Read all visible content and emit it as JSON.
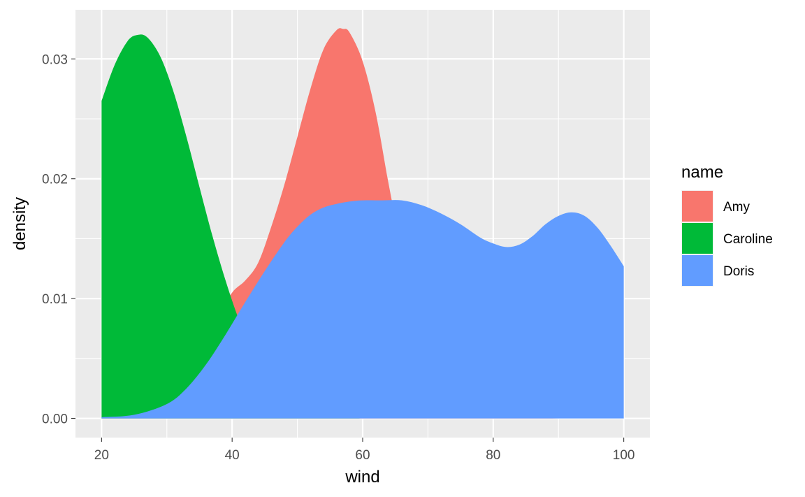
{
  "chart_data": {
    "type": "area",
    "xlabel": "wind",
    "ylabel": "density",
    "xlim": [
      16,
      104
    ],
    "ylim": [
      -0.0016,
      0.0341
    ],
    "x_ticks": [
      20,
      40,
      60,
      80,
      100
    ],
    "x_tick_labels": [
      "20",
      "40",
      "60",
      "80",
      "100"
    ],
    "y_ticks": [
      0,
      0.01,
      0.02,
      0.03
    ],
    "y_tick_labels": [
      "0.00",
      "0.01",
      "0.02",
      "0.03"
    ],
    "grid": true,
    "legend": {
      "title": "name",
      "placement": "right"
    },
    "series": [
      {
        "name": "Amy",
        "color": "#F8766D",
        "x": [
          20,
          30,
          35,
          38,
          40,
          42,
          44,
          46,
          48,
          50,
          52,
          54,
          56,
          57,
          58,
          60,
          62,
          64,
          66,
          68,
          70,
          72,
          75,
          80,
          90,
          100
        ],
        "y": [
          0,
          0.0015,
          0.005,
          0.0085,
          0.0105,
          0.0115,
          0.013,
          0.016,
          0.0195,
          0.0235,
          0.0275,
          0.0308,
          0.0324,
          0.0325,
          0.0322,
          0.0298,
          0.0255,
          0.0195,
          0.014,
          0.009,
          0.005,
          0.0025,
          0.0008,
          0.0001,
          0,
          0
        ]
      },
      {
        "name": "Caroline",
        "color": "#00BA38",
        "x": [
          20,
          22,
          24,
          25.5,
          27,
          29,
          31,
          33,
          35,
          37,
          39,
          41,
          43,
          45,
          48,
          52,
          56,
          60,
          100
        ],
        "y": [
          0.0265,
          0.0295,
          0.0315,
          0.032,
          0.0318,
          0.0302,
          0.0273,
          0.0235,
          0.0193,
          0.0152,
          0.0115,
          0.0083,
          0.0058,
          0.0038,
          0.0018,
          0.0006,
          0.0002,
          0,
          0
        ]
      },
      {
        "name": "Doris",
        "color": "#619CFF",
        "x": [
          20,
          25,
          30,
          33,
          36,
          39,
          42,
          45,
          48,
          50,
          52,
          54,
          56,
          58,
          60,
          63,
          66,
          69,
          72,
          75,
          78,
          80,
          82,
          84,
          86,
          88,
          90,
          92,
          94,
          96,
          98,
          100
        ],
        "y": [
          0.0001,
          0.0003,
          0.0012,
          0.0025,
          0.0045,
          0.007,
          0.0097,
          0.0123,
          0.0147,
          0.016,
          0.017,
          0.0176,
          0.0179,
          0.0181,
          0.0182,
          0.0182,
          0.0182,
          0.0178,
          0.0171,
          0.0162,
          0.0151,
          0.0146,
          0.0143,
          0.0145,
          0.0152,
          0.0162,
          0.0169,
          0.0172,
          0.0169,
          0.0159,
          0.0144,
          0.0127
        ]
      }
    ]
  }
}
